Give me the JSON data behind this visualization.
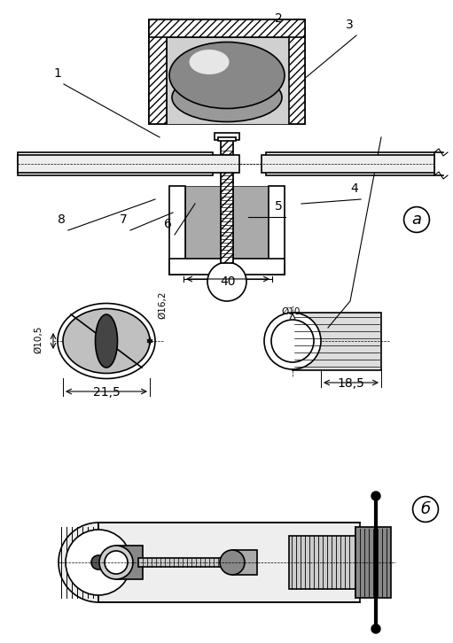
{
  "title": "",
  "bg_color": "#ffffff",
  "line_color": "#000000",
  "hatch_color": "#000000",
  "labels": {
    "part_a": "а",
    "part_b": "б",
    "dim_40": "40",
    "dim_215": "21,5",
    "dim_185": "18,5",
    "dim_105": "Ø10,5",
    "dim_162": "Ø16,2",
    "dim_10": "Ø10",
    "num1": "1",
    "num2": "2",
    "num3": "3",
    "num4": "4",
    "num5": "5",
    "num6": "6",
    "num7": "7",
    "num8": "8"
  }
}
